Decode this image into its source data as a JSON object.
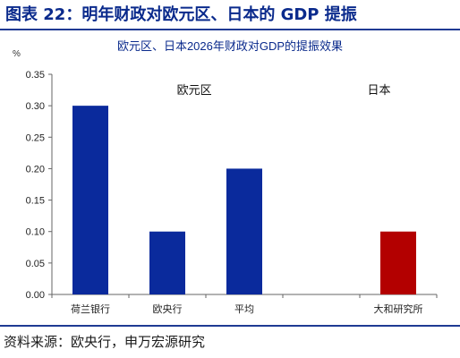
{
  "figure_title": "图表 22：明年财政对欧元区、日本的 GDP 提振",
  "source_note": "资料来源：欧央行，申万宏源研究",
  "chart_data": {
    "type": "bar",
    "title": "欧元区、日本2026年财政对GDP的提振效果",
    "unit": "%",
    "categories": [
      "荷兰银行",
      "欧央行",
      "平均",
      "",
      "大和研究所"
    ],
    "values": [
      0.3,
      0.1,
      0.2,
      null,
      0.1
    ],
    "group_labels": [
      {
        "label": "欧元区",
        "categories": [
          "荷兰银行",
          "欧央行",
          "平均"
        ]
      },
      {
        "label": "日本",
        "categories": [
          "大和研究所"
        ]
      }
    ],
    "bar_colors": [
      "#0a2a9c",
      "#0a2a9c",
      "#0a2a9c",
      "#0a2a9c",
      "#b30000"
    ],
    "ylim": [
      0,
      0.35
    ],
    "yticks": [
      "0.00",
      "0.05",
      "0.10",
      "0.15",
      "0.20",
      "0.25",
      "0.30",
      "0.35"
    ],
    "xlabel": "",
    "ylabel": "",
    "grid": false,
    "legend": "none"
  }
}
